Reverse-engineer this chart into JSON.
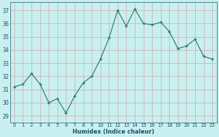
{
  "x": [
    0,
    1,
    2,
    3,
    4,
    5,
    6,
    7,
    8,
    9,
    10,
    11,
    12,
    13,
    14,
    15,
    16,
    17,
    18,
    19,
    20,
    21,
    22,
    23
  ],
  "y": [
    31.2,
    31.4,
    32.2,
    31.4,
    30.0,
    30.3,
    29.2,
    30.5,
    31.5,
    32.0,
    33.3,
    34.9,
    37.0,
    35.8,
    37.1,
    36.0,
    35.9,
    36.1,
    35.4,
    34.1,
    34.3,
    34.8,
    33.5,
    33.3
  ],
  "xlabel": "Humidex (Indice chaleur)",
  "ylim": [
    28.5,
    37.6
  ],
  "xlim": [
    -0.5,
    23.5
  ],
  "yticks": [
    29,
    30,
    31,
    32,
    33,
    34,
    35,
    36,
    37
  ],
  "xticks": [
    0,
    1,
    2,
    3,
    4,
    5,
    6,
    7,
    8,
    9,
    10,
    11,
    12,
    13,
    14,
    15,
    16,
    17,
    18,
    19,
    20,
    21,
    22,
    23
  ],
  "line_color": "#2d7b6e",
  "marker_color": "#2d7b6e",
  "bg_color": "#c8f0f0",
  "plot_bg_color": "#c8f0f0",
  "grid_color": "#b0d8d8",
  "tick_label_color": "#1a5060",
  "xlabel_color": "#1a5060"
}
